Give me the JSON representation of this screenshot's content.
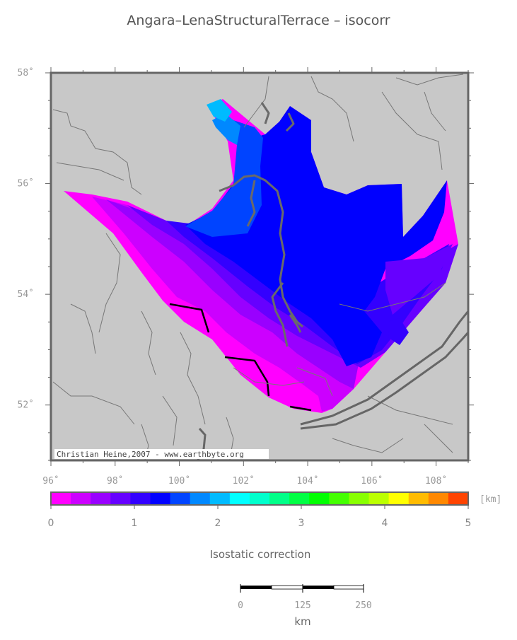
{
  "title": "Angara–LenaStructuralTerrace – isocorr",
  "map": {
    "lon_range": [
      96,
      109
    ],
    "lat_range": [
      51,
      58
    ],
    "lon_ticks": [
      "96˚",
      "98˚",
      "100˚",
      "102˚",
      "104˚",
      "106˚",
      "108˚"
    ],
    "lat_ticks": [
      "58˚",
      "56˚",
      "54˚",
      "52˚"
    ],
    "background_color": "#c8c8c8",
    "credit": "Christian Heine,2007 - www.earthbyte.org"
  },
  "colorbar": {
    "unit": "[km]",
    "labels": [
      "0",
      "1",
      "2",
      "3",
      "4",
      "5"
    ],
    "range": [
      0,
      5
    ],
    "colors": [
      "#ff00ff",
      "#cc00ff",
      "#9900ff",
      "#6600ff",
      "#3300ff",
      "#0000ff",
      "#0044ff",
      "#0088ff",
      "#00bbff",
      "#00ffff",
      "#00ffcc",
      "#00ff88",
      "#00ff44",
      "#00ff00",
      "#44ff00",
      "#88ff00",
      "#bbff00",
      "#ffff00",
      "#ffbb00",
      "#ff8800",
      "#ff4400"
    ],
    "caption": "Isostatic correction"
  },
  "scalebar": {
    "labels": [
      "0",
      "125",
      "250"
    ],
    "unit": "km"
  }
}
